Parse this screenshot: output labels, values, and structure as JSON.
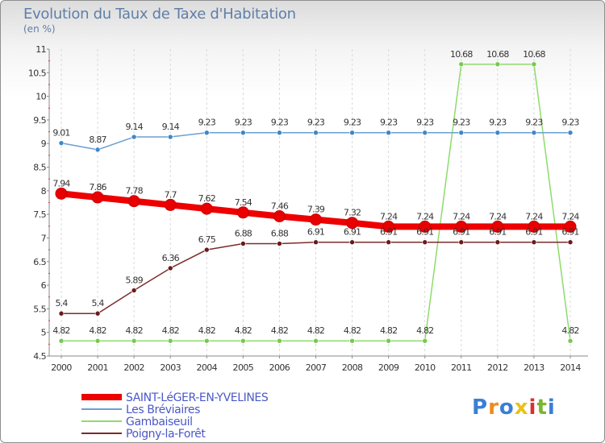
{
  "title": "Evolution du Taux de Taxe d'Habitation",
  "subtitle": "(en %)",
  "logo": {
    "text": "Proxiti",
    "colors": [
      "#3a7fd5",
      "#f08a1c",
      "#3a7fd5",
      "#e8c21a",
      "#d8312f",
      "#78b62e",
      "#3a7fd5"
    ]
  },
  "chart_data": {
    "type": "line",
    "x": [
      "2000",
      "2001",
      "2002",
      "2003",
      "2004",
      "2005",
      "2006",
      "2007",
      "2008",
      "2009",
      "2010",
      "2011",
      "2012",
      "2013",
      "2014"
    ],
    "ylim": [
      4.5,
      11
    ],
    "yticks": [
      "4.5",
      "5",
      "5.5",
      "6",
      "6.5",
      "7",
      "7.5",
      "8",
      "8.5",
      "9",
      "9.5",
      "10",
      "10.5",
      "11"
    ],
    "grid": "vertical dashed",
    "legend_position": "bottom-left",
    "series": [
      {
        "name": "SAINT-LéGER-EN-YVELINES",
        "color": "#ee0000",
        "marker": "#e80000",
        "values": [
          7.94,
          7.86,
          7.78,
          7.7,
          7.62,
          7.54,
          7.46,
          7.39,
          7.32,
          7.24,
          7.24,
          7.24,
          7.24,
          7.24,
          7.24
        ],
        "labels": [
          "7.94",
          "7.86",
          "7.78",
          "7.7",
          "7.62",
          "7.54",
          "7.46",
          "7.39",
          "7.32",
          "7.24",
          "7.24",
          "7.24",
          "7.24",
          "7.24",
          "7.24"
        ]
      },
      {
        "name": "Les Bréviaires",
        "color": "#6b9fd1",
        "marker": "#3f86c9",
        "values": [
          9.01,
          8.87,
          9.14,
          9.14,
          9.23,
          9.23,
          9.23,
          9.23,
          9.23,
          9.23,
          9.23,
          9.23,
          9.23,
          9.23,
          9.23
        ],
        "labels": [
          "9.01",
          "8.87",
          "9.14",
          "9.14",
          "9.23",
          "9.23",
          "9.23",
          "9.23",
          "9.23",
          "9.23",
          "9.23",
          "9.23",
          "9.23",
          "9.23",
          "9.23"
        ]
      },
      {
        "name": "Gambaiseuil",
        "color": "#8fdb6c",
        "marker": "#76c94e",
        "values": [
          4.82,
          4.82,
          4.82,
          4.82,
          4.82,
          4.82,
          4.82,
          4.82,
          4.82,
          4.82,
          4.82,
          10.68,
          10.68,
          10.68,
          4.82
        ],
        "labels": [
          "4.82",
          "4.82",
          "4.82",
          "4.82",
          "4.82",
          "4.82",
          "4.82",
          "4.82",
          "4.82",
          "4.82",
          "4.82",
          "10.68",
          "10.68",
          "10.68",
          "4.82"
        ]
      },
      {
        "name": "Poigny-la-Forêt",
        "color": "#7d2b2b",
        "marker": "#6a1a1a",
        "values": [
          5.4,
          5.4,
          5.89,
          6.36,
          6.75,
          6.88,
          6.88,
          6.91,
          6.91,
          6.91,
          6.91,
          6.91,
          6.91,
          6.91,
          6.91
        ],
        "labels": [
          "5.4",
          "5.4",
          "5.89",
          "6.36",
          "6.75",
          "6.88",
          "6.88",
          "6.91",
          "6.91",
          "6.91",
          "6.91",
          "6.91",
          "6.91",
          "6.91",
          "6.91"
        ]
      }
    ]
  }
}
